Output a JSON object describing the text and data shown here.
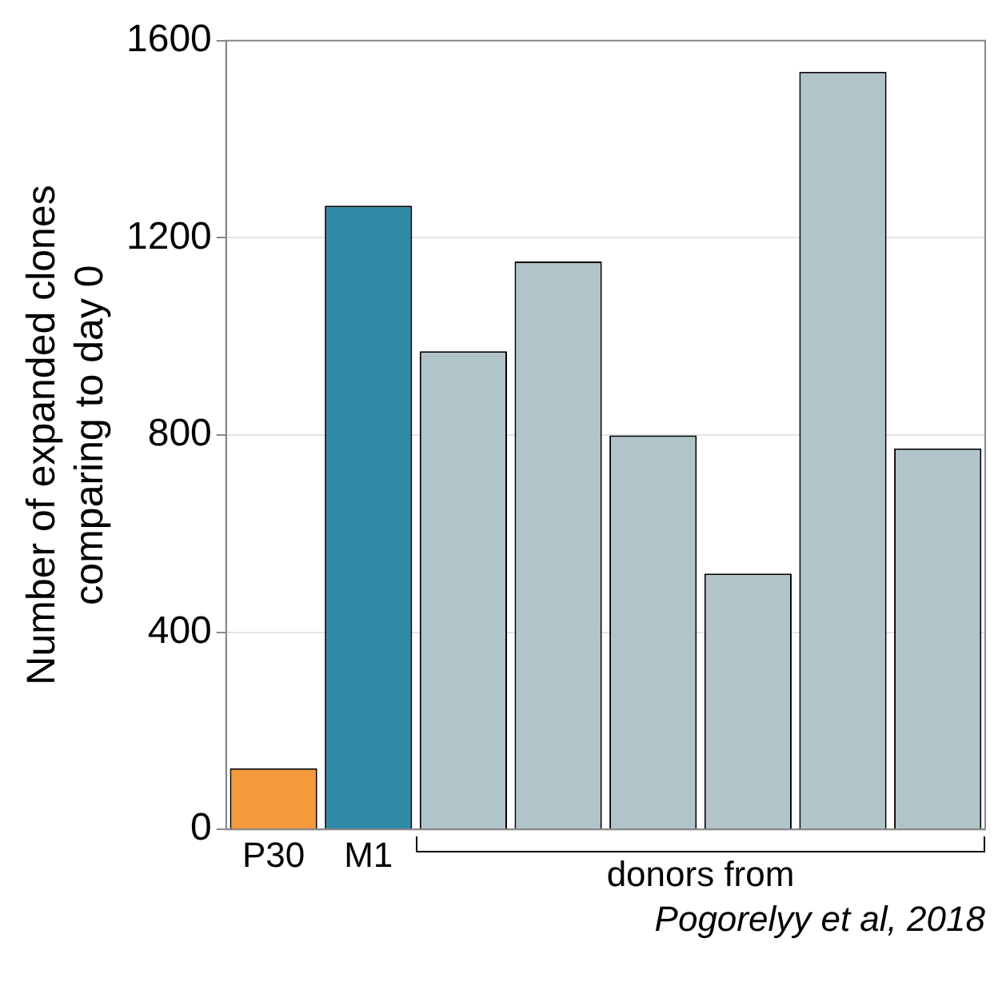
{
  "chart_data": {
    "type": "bar",
    "ylabel": "Number of expanded clones\ncomparing to day 0",
    "categories": [
      "P30",
      "M1",
      null,
      null,
      null,
      null,
      null,
      null
    ],
    "values": [
      124,
      1265,
      970,
      1152,
      799,
      519,
      1537,
      773
    ],
    "colors": [
      "#f39a3c",
      "#2e89a6",
      "#b0c4ca",
      "#b0c4ca",
      "#b0c4ca",
      "#b0c4ca",
      "#b0c4ca",
      "#b0c4ca"
    ],
    "ylim": [
      0,
      1600
    ],
    "yticks": [
      0,
      400,
      800,
      1200,
      1600
    ],
    "grid": "y",
    "legend": false,
    "annotations": [
      "donors from",
      "Pogorelyy et al, 2018"
    ]
  }
}
